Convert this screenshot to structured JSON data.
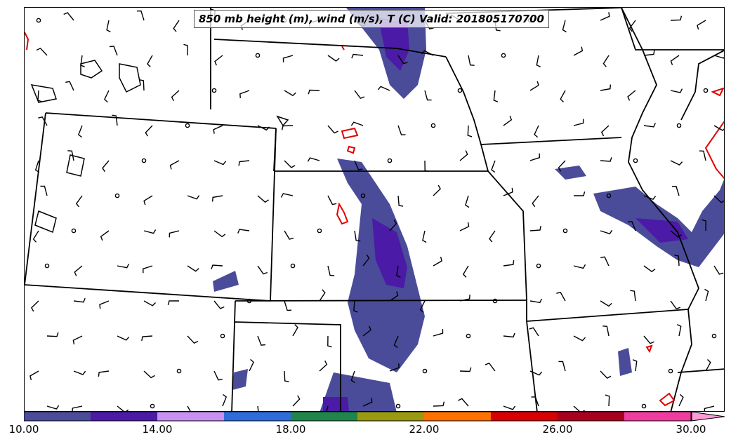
{
  "title": "850 mb height (m), wind (m/s), T (C) Valid: 201805170700",
  "colorbar": {
    "tick_labels": [
      "10.00",
      "14.00",
      "18.00",
      "22.00",
      "26.00",
      "30.00"
    ],
    "colors": [
      "#4a4c9a",
      "#4b1aa6",
      "#c98ff2",
      "#2e6cdc",
      "#20854a",
      "#9a9a10",
      "#ff7000",
      "#d80000",
      "#a8001e",
      "#f03ca0",
      "#ff9ad8"
    ]
  },
  "colors": {
    "state_lines": "#000000",
    "contour_line": "#e00000",
    "wind_barb": "#000000"
  }
}
